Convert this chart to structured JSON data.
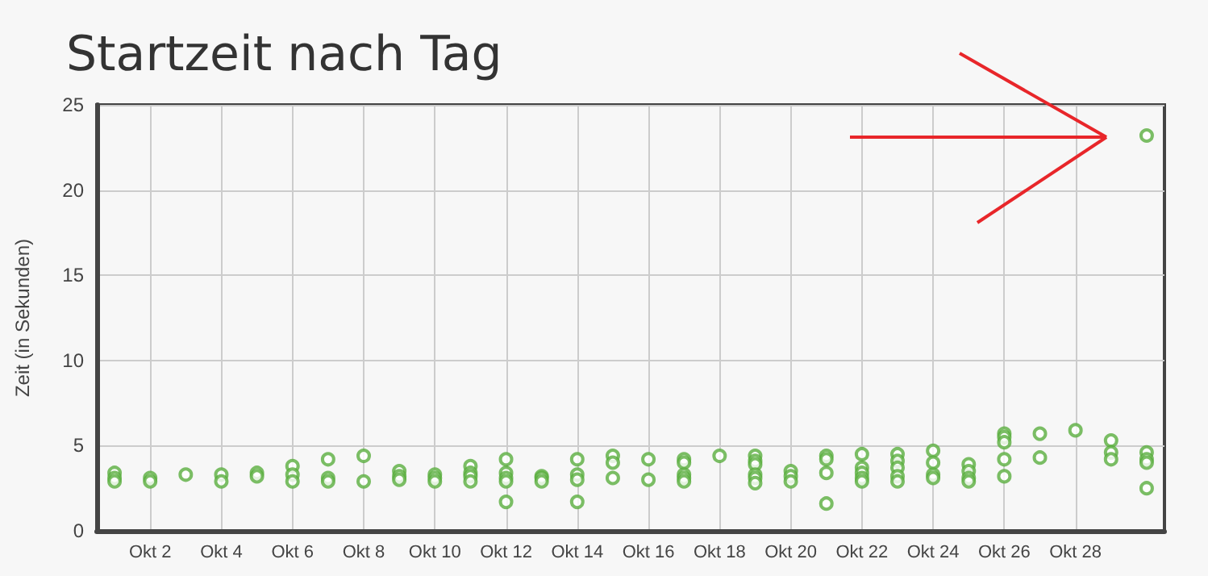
{
  "chart_data": {
    "type": "scatter",
    "title": "Startzeit nach Tag",
    "ylabel": "Zeit (in Sekunden)",
    "x": [
      "--10-01",
      "--10-01",
      "--10-01",
      "--10-02",
      "--10-02",
      "--10-03",
      "--10-04",
      "--10-04",
      "--10-05",
      "--10-05",
      "--10-06",
      "--10-06",
      "--10-06",
      "--10-07",
      "--10-07",
      "--10-07",
      "--10-08",
      "--10-08",
      "--10-09",
      "--10-09",
      "--10-09",
      "--10-10",
      "--10-10",
      "--10-10",
      "--10-11",
      "--10-11",
      "--10-11",
      "--10-11",
      "--10-12",
      "--10-12",
      "--10-12",
      "--10-12",
      "--10-12",
      "--10-13",
      "--10-13",
      "--10-13",
      "--10-14",
      "--10-14",
      "--10-14",
      "--10-14",
      "--10-15",
      "--10-15",
      "--10-15",
      "--10-16",
      "--10-16",
      "--10-17",
      "--10-17",
      "--10-17",
      "--10-17",
      "--10-17",
      "--10-18",
      "--10-19",
      "--10-19",
      "--10-19",
      "--10-19",
      "--10-19",
      "--10-19",
      "--10-20",
      "--10-20",
      "--10-20",
      "--10-21",
      "--10-21",
      "--10-21",
      "--10-21",
      "--10-22",
      "--10-22",
      "--10-22",
      "--10-22",
      "--10-22",
      "--10-23",
      "--10-23",
      "--10-23",
      "--10-23",
      "--10-23",
      "--10-24",
      "--10-24",
      "--10-24",
      "--10-24",
      "--10-25",
      "--10-25",
      "--10-25",
      "--10-25",
      "--10-26",
      "--10-26",
      "--10-26",
      "--10-26",
      "--10-26",
      "--10-27",
      "--10-27",
      "--10-28",
      "--10-29",
      "--10-29",
      "--10-29",
      "--10-30",
      "--10-30",
      "--10-30",
      "--10-30",
      "--10-30"
    ],
    "series": [
      {
        "color": "#5aae3f",
        "values": [
          3.4,
          3.1,
          2.9,
          3.1,
          2.9,
          3.3,
          3.3,
          2.9,
          3.4,
          3.2,
          3.8,
          3.3,
          2.9,
          4.2,
          3.1,
          2.9,
          4.4,
          2.9,
          3.5,
          3.2,
          3.0,
          3.3,
          3.1,
          2.9,
          3.8,
          3.4,
          3.2,
          2.9,
          4.2,
          3.4,
          3.1,
          2.9,
          1.7,
          3.2,
          3.1,
          2.9,
          4.2,
          3.3,
          3.0,
          1.7,
          4.4,
          4.0,
          3.1,
          4.2,
          3.0,
          4.2,
          4.0,
          3.3,
          3.1,
          2.9,
          4.4,
          4.4,
          4.1,
          3.9,
          3.3,
          3.1,
          2.8,
          3.5,
          3.2,
          2.9,
          4.4,
          4.2,
          3.4,
          1.6,
          4.5,
          3.7,
          3.4,
          3.1,
          2.9,
          4.5,
          4.1,
          3.7,
          3.2,
          2.9,
          4.7,
          4.0,
          3.3,
          3.1,
          3.9,
          3.5,
          3.1,
          2.9,
          5.7,
          5.5,
          5.2,
          4.2,
          3.2,
          5.7,
          4.3,
          5.9,
          5.3,
          4.6,
          4.2,
          23.2,
          4.6,
          4.2,
          4.0,
          2.5
        ]
      }
    ],
    "xlim": [
      "--09-30T12:00",
      "--10-30T12:00"
    ],
    "xticks": [
      {
        "value": "--10-02",
        "label": "Okt 2"
      },
      {
        "value": "--10-04",
        "label": "Okt 4"
      },
      {
        "value": "--10-06",
        "label": "Okt 6"
      },
      {
        "value": "--10-08",
        "label": "Okt 8"
      },
      {
        "value": "--10-10",
        "label": "Okt 10"
      },
      {
        "value": "--10-12",
        "label": "Okt 12"
      },
      {
        "value": "--10-14",
        "label": "Okt 14"
      },
      {
        "value": "--10-16",
        "label": "Okt 16"
      },
      {
        "value": "--10-18",
        "label": "Okt 18"
      },
      {
        "value": "--10-20",
        "label": "Okt 20"
      },
      {
        "value": "--10-22",
        "label": "Okt 22"
      },
      {
        "value": "--10-24",
        "label": "Okt 24"
      },
      {
        "value": "--10-26",
        "label": "Okt 26"
      },
      {
        "value": "--10-28",
        "label": "Okt 28"
      }
    ],
    "ylim": [
      0,
      25
    ],
    "yticks": [
      0,
      5,
      10,
      15,
      20,
      25
    ],
    "grid": true,
    "marker": "circle"
  }
}
